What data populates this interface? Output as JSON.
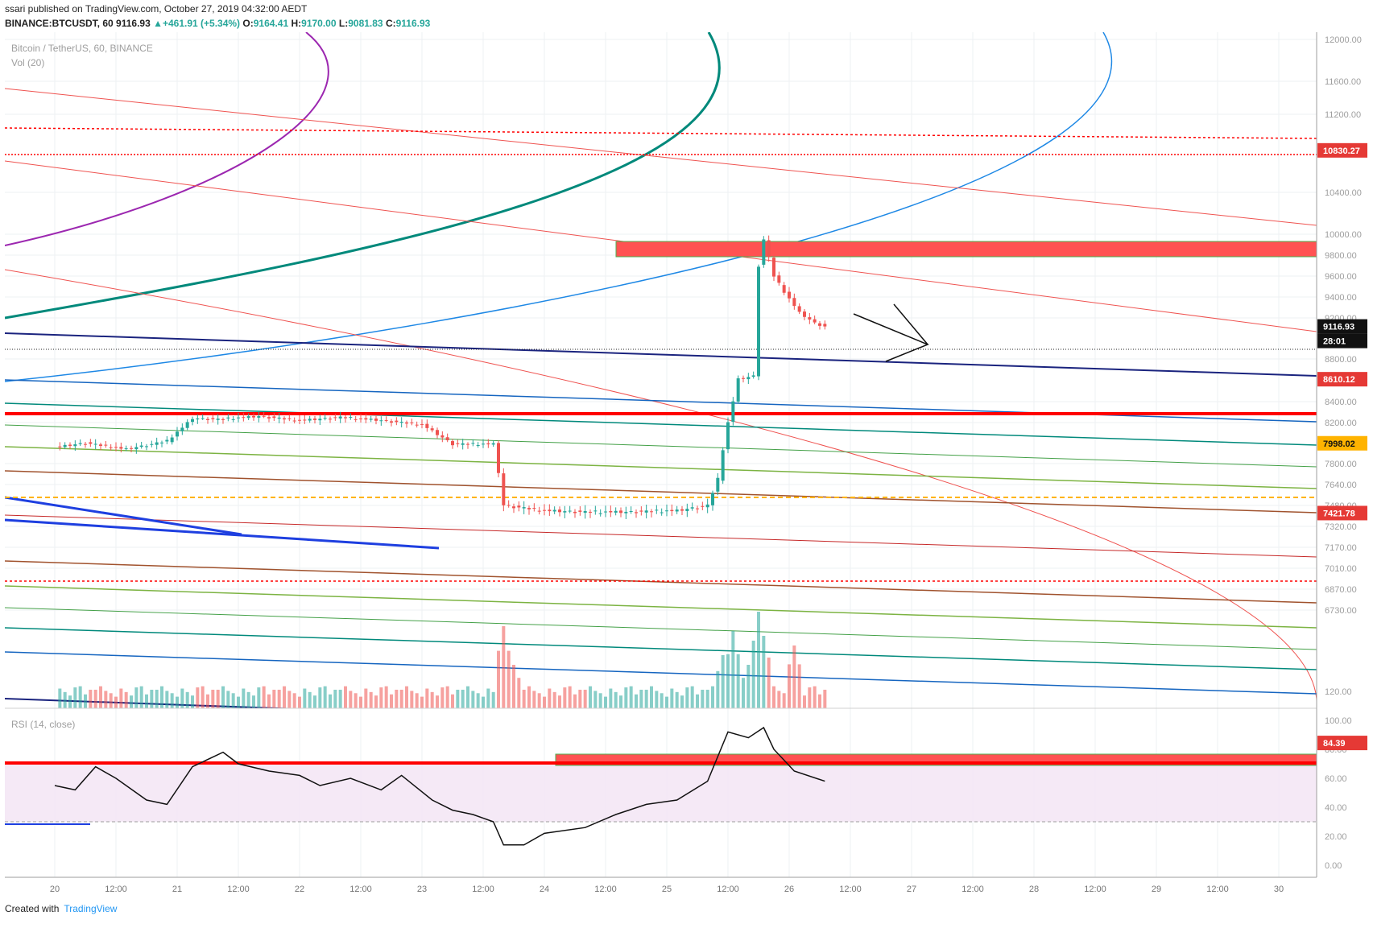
{
  "header": {
    "publisher": "ssari published on TradingView.com, October 27, 2019 04:32:00 AEDT",
    "symbol": "BINANCE:BTCUSDT, 60",
    "last": "9116.93",
    "change": "+461.91 (+5.34%)",
    "o_label": "O:",
    "o": "9164.41",
    "h_label": "H:",
    "h": "9170.00",
    "l_label": "L:",
    "l": "9081.83",
    "c_label": "C:",
    "c": "9116.93"
  },
  "legend": {
    "instrument": "Bitcoin / TetherUS, 60, BINANCE",
    "volume": "Vol (20)",
    "rsi": "RSI (14, close)"
  },
  "footer": {
    "created_with": "Created with",
    "brand": "TradingView"
  },
  "colors": {
    "up": "#26a69a",
    "down": "#ef5350",
    "support": "#ff0000",
    "rsi_band": "#9c27b0"
  },
  "chart_data": [
    {
      "type": "candlestick",
      "title": "Bitcoin / TetherUS, 60, BINANCE",
      "ylim": [
        6730,
        12000
      ],
      "y_axis_ticks": [
        12000,
        11600,
        11200,
        10400,
        10000,
        9800,
        9600,
        9400,
        9200,
        8800,
        8400,
        8200,
        7800,
        7640,
        7480,
        7320,
        7170,
        7010,
        6870,
        6730
      ],
      "x_axis_ticks": [
        "20",
        "12:00",
        "21",
        "12:00",
        "22",
        "12:00",
        "23",
        "12:00",
        "24",
        "12:00",
        "25",
        "12:00",
        "26",
        "12:00",
        "27",
        "12:00",
        "28",
        "12:00",
        "29",
        "12:00",
        "30"
      ],
      "price_labels": [
        {
          "value": 10830.27,
          "kind": "level"
        },
        {
          "value": 9116.93,
          "kind": "last"
        },
        {
          "value": 8610.12,
          "kind": "level"
        },
        {
          "value": 7998.02,
          "kind": "level"
        },
        {
          "value": 7421.78,
          "kind": "level"
        }
      ],
      "countdown": "28:01",
      "resistance_zone": [
        9900,
        10000
      ],
      "close_path": [
        {
          "t": 0,
          "v": 7960
        },
        {
          "t": 6,
          "v": 8000
        },
        {
          "t": 14,
          "v": 7940
        },
        {
          "t": 22,
          "v": 8020
        },
        {
          "t": 27,
          "v": 8240
        },
        {
          "t": 32,
          "v": 8230
        },
        {
          "t": 40,
          "v": 8260
        },
        {
          "t": 48,
          "v": 8220
        },
        {
          "t": 56,
          "v": 8250
        },
        {
          "t": 64,
          "v": 8220
        },
        {
          "t": 72,
          "v": 8180
        },
        {
          "t": 78,
          "v": 7990
        },
        {
          "t": 86,
          "v": 7990
        },
        {
          "t": 88,
          "v": 7480
        },
        {
          "t": 96,
          "v": 7440
        },
        {
          "t": 104,
          "v": 7430
        },
        {
          "t": 112,
          "v": 7430
        },
        {
          "t": 122,
          "v": 7440
        },
        {
          "t": 128,
          "v": 7480
        },
        {
          "t": 130,
          "v": 7680
        },
        {
          "t": 132,
          "v": 8200
        },
        {
          "t": 134,
          "v": 8610
        },
        {
          "t": 137,
          "v": 8640
        },
        {
          "t": 138,
          "v": 9700
        },
        {
          "t": 139,
          "v": 9950
        },
        {
          "t": 141,
          "v": 9600
        },
        {
          "t": 143,
          "v": 9450
        },
        {
          "t": 146,
          "v": 9250
        },
        {
          "t": 149,
          "v": 9150
        },
        {
          "t": 151,
          "v": 9117
        }
      ],
      "volume_peaks": [
        {
          "t": 88,
          "v": 0.85
        },
        {
          "t": 90,
          "v": 0.45
        },
        {
          "t": 131,
          "v": 0.55
        },
        {
          "t": 133,
          "v": 0.8
        },
        {
          "t": 136,
          "v": 0.45
        },
        {
          "t": 138,
          "v": 1.0
        },
        {
          "t": 139,
          "v": 0.75
        },
        {
          "t": 145,
          "v": 0.65
        }
      ]
    },
    {
      "type": "line",
      "title": "RSI (14, close)",
      "ylim": [
        0,
        120
      ],
      "y_axis_ticks": [
        120,
        100,
        80,
        60,
        40,
        20,
        0
      ],
      "band": [
        30,
        70
      ],
      "level_label": 84.39,
      "series": [
        {
          "values": [
            [
              0,
              55
            ],
            [
              4,
              52
            ],
            [
              8,
              68
            ],
            [
              12,
              60
            ],
            [
              18,
              45
            ],
            [
              22,
              42
            ],
            [
              27,
              68
            ],
            [
              33,
              78
            ],
            [
              36,
              70
            ],
            [
              42,
              65
            ],
            [
              48,
              62
            ],
            [
              52,
              55
            ],
            [
              58,
              60
            ],
            [
              64,
              52
            ],
            [
              68,
              62
            ],
            [
              74,
              45
            ],
            [
              78,
              38
            ],
            [
              82,
              35
            ],
            [
              86,
              30
            ],
            [
              88,
              14
            ],
            [
              92,
              14
            ],
            [
              96,
              22
            ],
            [
              104,
              26
            ],
            [
              110,
              35
            ],
            [
              116,
              42
            ],
            [
              122,
              45
            ],
            [
              128,
              58
            ],
            [
              132,
              92
            ],
            [
              136,
              88
            ],
            [
              139,
              95
            ],
            [
              141,
              80
            ],
            [
              145,
              65
            ],
            [
              151,
              58
            ]
          ]
        }
      ]
    }
  ]
}
